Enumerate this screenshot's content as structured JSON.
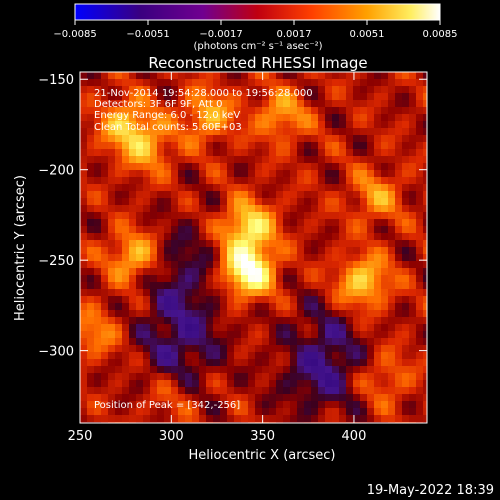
{
  "chart_data": {
    "type": "heatmap",
    "title": "Reconstructed RHESSI Image",
    "xlabel": "Heliocentric X (arcsec)",
    "ylabel": "Heliocentric Y (arcsec)",
    "xlim": [
      250,
      440
    ],
    "ylim": [
      -340,
      -146
    ],
    "x_ticks": [
      250,
      300,
      350,
      400
    ],
    "x_tick_labels": [
      "250",
      "300",
      "350",
      "400"
    ],
    "y_ticks": [
      -150,
      -200,
      -250,
      -300
    ],
    "y_tick_labels": [
      "−150",
      "−200",
      "−250",
      "−300"
    ],
    "annotations": [
      "21-Nov-2014 19:54:28.000 to 19:56:28.000",
      "Detectors: 3F 6F 9F, Att 0",
      "Energy Range: 6.0 - 12.0 keV",
      "Clean    Total counts: 5.60E+03"
    ],
    "peak_label": "Position of Peak = [342,-256]",
    "peak_position": [
      342,
      -256
    ],
    "colorbar": {
      "range": [
        -0.0085,
        0.0085
      ],
      "ticks": [
        -0.0085,
        -0.0051,
        -0.0017,
        0.0017,
        0.0051,
        0.0085
      ],
      "tick_labels": [
        "−0.0085",
        "−0.0051",
        "−0.0017",
        "0.0017",
        "0.0051",
        "0.0085"
      ],
      "units": "(photons cm⁻² s⁻¹ asec⁻²)",
      "colors": [
        "#0000ff",
        "#400080",
        "#7f0090",
        "#c00000",
        "#ff4000",
        "#ffa000",
        "#ffff60",
        "#ffffff"
      ]
    },
    "grid": false,
    "colormap": "blue-purple-red-yellow-white",
    "sources": [
      {
        "x": 342,
        "y": -256,
        "amp": 1.0
      },
      {
        "x": 342,
        "y": -232,
        "amp": 0.75
      },
      {
        "x": 280,
        "y": -248,
        "amp": 0.6
      },
      {
        "x": 287,
        "y": -188,
        "amp": 0.45
      },
      {
        "x": 275,
        "y": -175,
        "amp": 0.55
      },
      {
        "x": 320,
        "y": -170,
        "amp": 0.5
      },
      {
        "x": 360,
        "y": -170,
        "amp": 0.45
      },
      {
        "x": 405,
        "y": -262,
        "amp": 0.65
      },
      {
        "x": 412,
        "y": -215,
        "amp": 0.4
      },
      {
        "x": 258,
        "y": -290,
        "amp": 0.35
      },
      {
        "x": 418,
        "y": -315,
        "amp": 0.3
      },
      {
        "x": 300,
        "y": -325,
        "amp": 0.2
      },
      {
        "x": 370,
        "y": -300,
        "amp": 0.2
      }
    ],
    "negative_regions": [
      {
        "x": 380,
        "y": -305,
        "amp": 0.55
      },
      {
        "x": 305,
        "y": -295,
        "amp": 0.4
      },
      {
        "x": 305,
        "y": -255,
        "amp": 0.3
      }
    ]
  },
  "footer": {
    "date": "19-May-2022 18:39"
  }
}
